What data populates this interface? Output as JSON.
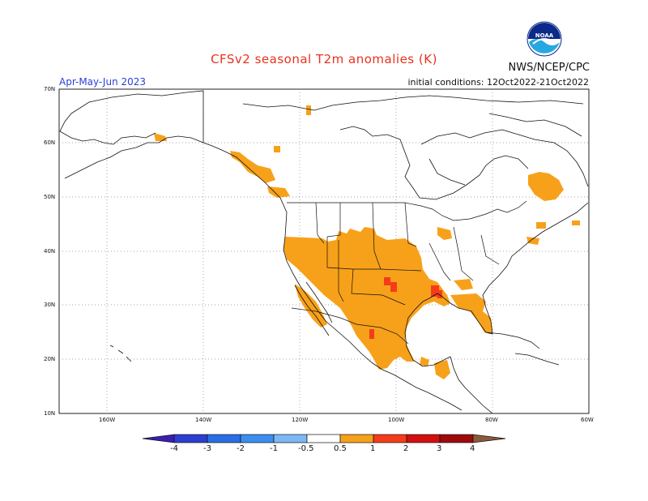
{
  "header": {
    "title": "CFSv2 seasonal T2m anomalies (K)",
    "org": "NWS/NCEP/CPC",
    "season": "Apr-May-Jun 2023",
    "init": "initial conditions: 12Oct2022-21Oct2022",
    "logo_text": "NOAA"
  },
  "map": {
    "lat_labels": [
      "70N",
      "60N",
      "50N",
      "40N",
      "30N",
      "20N",
      "10N"
    ],
    "lon_labels": [
      "160W",
      "140W",
      "120W",
      "100W",
      "80W",
      "60W"
    ]
  },
  "colorbar": {
    "labels": [
      "-4",
      "-3",
      "-2",
      "-1",
      "-0.5",
      "0.5",
      "1",
      "2",
      "3",
      "4"
    ],
    "colors": [
      "#3a1fb0",
      "#2c3fd0",
      "#2a6ee6",
      "#3a8ff0",
      "#7cb8f5",
      "#ffffff",
      "#f7a11a",
      "#f53c1a",
      "#d40f0f",
      "#9e0a0a",
      "#c8a08e",
      "#8c5a3e"
    ]
  },
  "colors": {
    "anomaly_half": "#f7a11a",
    "anomaly_one": "#f53c1a",
    "title": "#e8321e",
    "season": "#2a3fd6"
  }
}
